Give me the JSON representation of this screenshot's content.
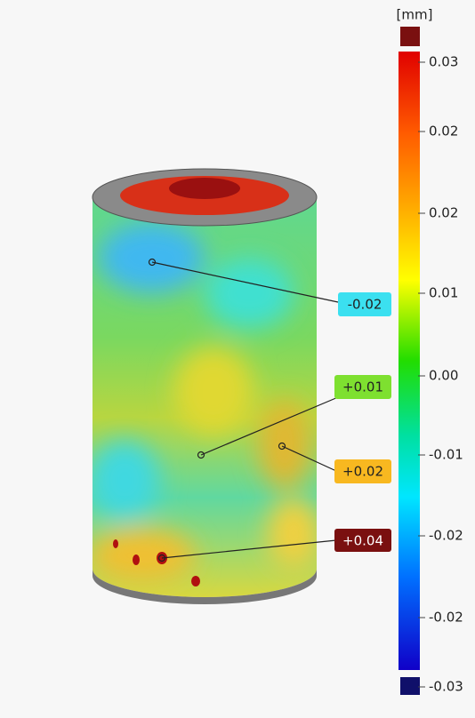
{
  "scale": {
    "unit": "[mm]",
    "labels": [
      "0.03",
      "0.02",
      "0.02",
      "0.01",
      "0.00",
      "-0.01",
      "-0.02",
      "-0.02",
      "-0.03"
    ]
  },
  "callouts": [
    {
      "label": "-0.02"
    },
    {
      "label": "+0.01"
    },
    {
      "label": "+0.02"
    },
    {
      "label": "+0.04"
    }
  ]
}
